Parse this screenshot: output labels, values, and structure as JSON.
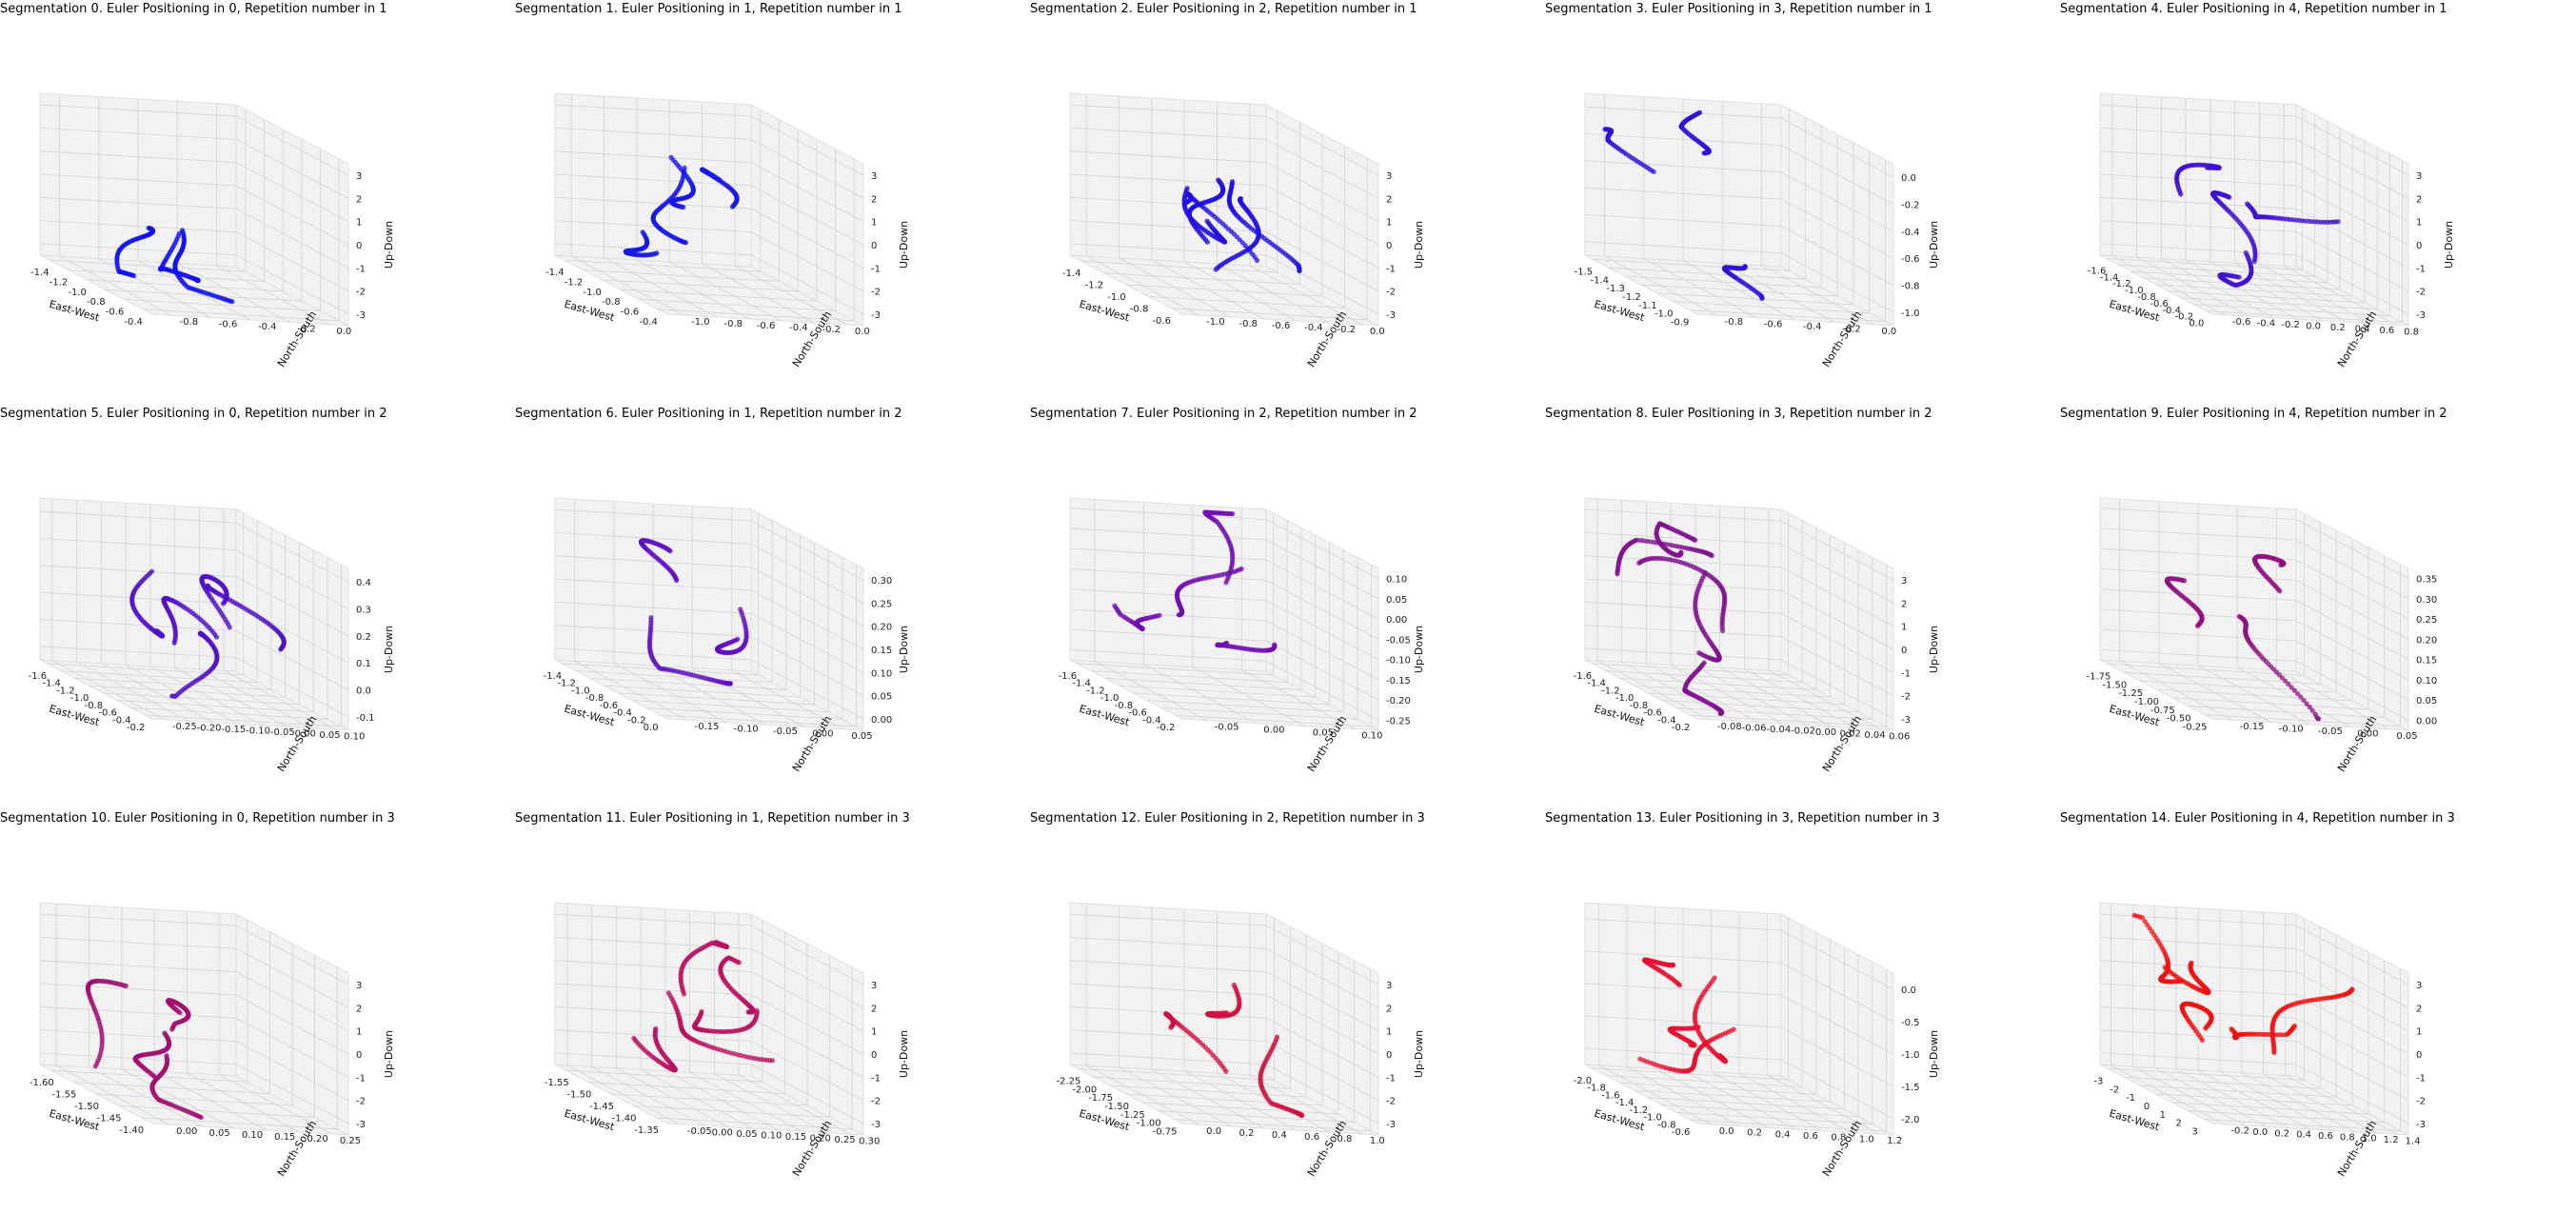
{
  "chart_data": [
    {
      "type": "scatter3d",
      "title": "Segmentation 0. Euler Positioning in 0, Repetition number in 1",
      "xlabel": "East-West",
      "ylabel": "North-South",
      "zlabel": "Up-Down",
      "color": "#1010f0",
      "xticks": [
        "-1.4",
        "-1.2",
        "-1.0",
        "-0.8",
        "-0.6",
        "-0.4"
      ],
      "yticks": [
        "0.0",
        "-0.2",
        "-0.4",
        "-0.6",
        "-0.8"
      ],
      "zticks": [
        "3",
        "2",
        "1",
        "0",
        "-1",
        "-2",
        "-3"
      ],
      "xlim": [
        -1.5,
        -0.3
      ],
      "ylim": [
        -0.9,
        0.1
      ],
      "zlim": [
        -3,
        3
      ]
    },
    {
      "type": "scatter3d",
      "title": "Segmentation 1. Euler Positioning in 1, Repetition number in 1",
      "xlabel": "East-West",
      "ylabel": "North-South",
      "zlabel": "Up-Down",
      "color": "#1818e8",
      "xticks": [
        "-1.4",
        "-1.2",
        "-1.0",
        "-0.8",
        "-0.6",
        "-0.4"
      ],
      "yticks": [
        "0.0",
        "-0.2",
        "-0.4",
        "-0.6",
        "-0.8",
        "-1.0"
      ],
      "zticks": [
        "3",
        "2",
        "1",
        "0",
        "-1",
        "-2",
        "-3"
      ],
      "xlim": [
        -1.5,
        -0.3
      ],
      "ylim": [
        -1.1,
        0.1
      ],
      "zlim": [
        -3,
        3
      ]
    },
    {
      "type": "scatter3d",
      "title": "Segmentation 2. Euler Positioning in 2, Repetition number in 1",
      "xlabel": "East-West",
      "ylabel": "North-South",
      "zlabel": "Up-Down",
      "color": "#2010e0",
      "xticks": [
        "-1.4",
        "-1.2",
        "-1.0",
        "-0.8",
        "-0.6"
      ],
      "yticks": [
        "0.0",
        "-0.2",
        "-0.4",
        "-0.6",
        "-0.8",
        "-1.0"
      ],
      "zticks": [
        "3",
        "2",
        "1",
        "0",
        "-1",
        "-2",
        "-3"
      ],
      "xlim": [
        -1.5,
        -0.5
      ],
      "ylim": [
        -1.1,
        0.1
      ],
      "zlim": [
        -3,
        3
      ]
    },
    {
      "type": "scatter3d",
      "title": "Segmentation 3. Euler Positioning in 3, Repetition number in 1",
      "xlabel": "East-West",
      "ylabel": "North-South",
      "zlabel": "Up-Down",
      "color": "#3010d8",
      "xticks": [
        "-1.5",
        "-1.4",
        "-1.3",
        "-1.2",
        "-1.1",
        "-1.0",
        "-0.9"
      ],
      "yticks": [
        "0.0",
        "-0.2",
        "-0.4",
        "-0.6",
        "-0.8"
      ],
      "zticks": [
        "0.0",
        "-0.2",
        "-0.4",
        "-0.6",
        "-0.8",
        "-1.0"
      ],
      "xlim": [
        -1.6,
        -0.85
      ],
      "ylim": [
        -0.9,
        0.1
      ],
      "zlim": [
        -1.1,
        0.05
      ]
    },
    {
      "type": "scatter3d",
      "title": "Segmentation 4. Euler Positioning in 4, Repetition number in 1",
      "xlabel": "East-West",
      "ylabel": "North-South",
      "zlabel": "Up-Down",
      "color": "#4010d0",
      "xticks": [
        "-1.6",
        "-1.4",
        "-1.2",
        "-1.0",
        "-0.8",
        "-0.6",
        "-0.4",
        "-0.2",
        "0.0"
      ],
      "yticks": [
        "0.8",
        "0.6",
        "0.4",
        "0.2",
        "0.0",
        "-0.2",
        "-0.4",
        "-0.6"
      ],
      "zticks": [
        "3",
        "2",
        "1",
        "0",
        "-1",
        "-2",
        "-3"
      ],
      "xlim": [
        -1.7,
        0.1
      ],
      "ylim": [
        -0.7,
        0.9
      ],
      "zlim": [
        -3,
        3
      ]
    },
    {
      "type": "scatter3d",
      "title": "Segmentation 5. Euler Positioning in 0, Repetition number in 2",
      "xlabel": "East-West",
      "ylabel": "North-South",
      "zlabel": "Up-Down",
      "color": "#5010c8",
      "xticks": [
        "-1.6",
        "-1.4",
        "-1.2",
        "-1.0",
        "-0.8",
        "-0.6",
        "-0.4",
        "-0.2"
      ],
      "yticks": [
        "0.10",
        "0.05",
        "0.00",
        "-0.05",
        "-0.10",
        "-0.15",
        "-0.20",
        "-0.25"
      ],
      "zticks": [
        "0.4",
        "0.3",
        "0.2",
        "0.1",
        "0.0",
        "-0.1"
      ],
      "xlim": [
        -1.7,
        -0.1
      ],
      "ylim": [
        -0.27,
        0.11
      ],
      "zlim": [
        -0.15,
        0.45
      ]
    },
    {
      "type": "scatter3d",
      "title": "Segmentation 6. Euler Positioning in 1, Repetition number in 2",
      "xlabel": "East-West",
      "ylabel": "North-South",
      "zlabel": "Up-Down",
      "color": "#6010c0",
      "xticks": [
        "-1.4",
        "-1.2",
        "-1.0",
        "-0.8",
        "-0.6",
        "-0.4",
        "-0.2",
        "0.0"
      ],
      "yticks": [
        "0.05",
        "0.00",
        "-0.05",
        "-0.10",
        "-0.15"
      ],
      "zticks": [
        "0.30",
        "0.25",
        "0.20",
        "0.15",
        "0.10",
        "0.05",
        "0.00"
      ],
      "xlim": [
        -1.5,
        0.05
      ],
      "ylim": [
        -0.17,
        0.07
      ],
      "zlim": [
        -0.02,
        0.32
      ]
    },
    {
      "type": "scatter3d",
      "title": "Segmentation 7. Euler Positioning in 2, Repetition number in 2",
      "xlabel": "East-West",
      "ylabel": "North-South",
      "zlabel": "Up-Down",
      "color": "#7010b0",
      "xticks": [
        "-1.6",
        "-1.4",
        "-1.2",
        "-1.0",
        "-0.8",
        "-0.6",
        "-0.4",
        "-0.2"
      ],
      "yticks": [
        "0.10",
        "0.05",
        "0.00",
        "-0.05"
      ],
      "zticks": [
        "0.10",
        "0.05",
        "0.00",
        "-0.05",
        "-0.10",
        "-0.15",
        "-0.20",
        "-0.25"
      ],
      "xlim": [
        -1.7,
        -0.15
      ],
      "ylim": [
        -0.07,
        0.12
      ],
      "zlim": [
        -0.27,
        0.12
      ]
    },
    {
      "type": "scatter3d",
      "title": "Segmentation 8. Euler Positioning in 3, Repetition number in 2",
      "xlabel": "East-West",
      "ylabel": "North-South",
      "zlabel": "Up-Down",
      "color": "#801090",
      "xticks": [
        "-1.6",
        "-1.4",
        "-1.2",
        "-1.0",
        "-0.8",
        "-0.6",
        "-0.4",
        "-0.2"
      ],
      "yticks": [
        "0.06",
        "0.04",
        "0.02",
        "0.00",
        "-0.02",
        "-0.04",
        "-0.06",
        "-0.08"
      ],
      "zticks": [
        "3",
        "2",
        "1",
        "0",
        "-1",
        "-2",
        "-3"
      ],
      "xlim": [
        -1.7,
        -0.15
      ],
      "ylim": [
        -0.09,
        0.07
      ],
      "zlim": [
        -3,
        3
      ]
    },
    {
      "type": "scatter3d",
      "title": "Segmentation 9. Euler Positioning in 4, Repetition number in 2",
      "xlabel": "East-West",
      "ylabel": "North-South",
      "zlabel": "",
      "color": "#901080",
      "xticks": [
        "-1.75",
        "-1.50",
        "-1.25",
        "-1.00",
        "-0.75",
        "-0.50",
        "-0.25"
      ],
      "yticks": [
        "0.05",
        "0.00",
        "-0.05",
        "-0.10",
        "-0.15"
      ],
      "zticks": [
        "0.35",
        "0.30",
        "0.25",
        "0.20",
        "0.15",
        "0.10",
        "0.05",
        "0.00"
      ],
      "xlim": [
        -1.85,
        -0.15
      ],
      "ylim": [
        -0.17,
        0.07
      ],
      "zlim": [
        -0.02,
        0.37
      ]
    },
    {
      "type": "scatter3d",
      "title": "Segmentation 10. Euler Positioning in 0, Repetition number in 3",
      "xlabel": "East-West",
      "ylabel": "North-South",
      "zlabel": "Up-Down",
      "color": "#a01070",
      "xticks": [
        "-1.60",
        "-1.55",
        "-1.50",
        "-1.45",
        "-1.40"
      ],
      "yticks": [
        "0.25",
        "0.20",
        "0.15",
        "0.10",
        "0.05",
        "0.00"
      ],
      "zticks": [
        "3",
        "2",
        "1",
        "0",
        "-1",
        "-2",
        "-3"
      ],
      "xlim": [
        -1.63,
        -1.38
      ],
      "ylim": [
        -0.02,
        0.27
      ],
      "zlim": [
        -3,
        3
      ]
    },
    {
      "type": "scatter3d",
      "title": "Segmentation 11. Euler Positioning in 1, Repetition number in 3",
      "xlabel": "East-West",
      "ylabel": "North-South",
      "zlabel": "Up-Down",
      "color": "#b81060",
      "xticks": [
        "-1.55",
        "-1.50",
        "-1.45",
        "-1.40",
        "-1.35"
      ],
      "yticks": [
        "0.30",
        "0.25",
        "0.20",
        "0.15",
        "0.10",
        "0.05",
        "0.00",
        "-0.05"
      ],
      "zticks": [
        "3",
        "2",
        "1",
        "0",
        "-1",
        "-2",
        "-3"
      ],
      "xlim": [
        -1.58,
        -1.32
      ],
      "ylim": [
        -0.07,
        0.32
      ],
      "zlim": [
        -3,
        3
      ]
    },
    {
      "type": "scatter3d",
      "title": "Segmentation 12. Euler Positioning in 2, Repetition number in 3",
      "xlabel": "East-West",
      "ylabel": "North-South",
      "zlabel": "Up-Down",
      "color": "#d01040",
      "xticks": [
        "-2.25",
        "-2.00",
        "-1.75",
        "-1.50",
        "-1.25",
        "-1.00",
        "-0.75"
      ],
      "yticks": [
        "1.0",
        "0.8",
        "0.6",
        "0.4",
        "0.2",
        "0.0"
      ],
      "zticks": [
        "3",
        "2",
        "1",
        "0",
        "-1",
        "-2",
        "-3"
      ],
      "xlim": [
        -2.35,
        -0.6
      ],
      "ylim": [
        -0.05,
        1.1
      ],
      "zlim": [
        -3,
        3
      ]
    },
    {
      "type": "scatter3d",
      "title": "Segmentation 13. Euler Positioning in 3, Repetition number in 3",
      "xlabel": "East-West",
      "ylabel": "North-South",
      "zlabel": "Up-Down",
      "color": "#e81030",
      "xticks": [
        "-2.0",
        "-1.8",
        "-1.6",
        "-1.4",
        "-1.2",
        "-1.0",
        "-0.8",
        "-0.6"
      ],
      "yticks": [
        "1.2",
        "1.0",
        "0.8",
        "0.6",
        "0.4",
        "0.2",
        "0.0"
      ],
      "zticks": [
        "0.0",
        "-0.5",
        "-1.0",
        "-1.5",
        "-2.0"
      ],
      "xlim": [
        -2.1,
        -0.5
      ],
      "ylim": [
        -0.05,
        1.3
      ],
      "zlim": [
        -2.4,
        0.3
      ]
    },
    {
      "type": "scatter3d",
      "title": "Segmentation 14. Euler Positioning in 4, Repetition number in 3",
      "xlabel": "East-West",
      "ylabel": "North-South",
      "zlabel": "",
      "color": "#f01010",
      "xticks": [
        "-3",
        "-2",
        "-1",
        "0",
        "1",
        "2",
        "3"
      ],
      "yticks": [
        "1.4",
        "1.2",
        "1.0",
        "0.8",
        "0.6",
        "0.4",
        "0.2",
        "0.0",
        "-0.2"
      ],
      "zticks": [
        "3",
        "2",
        "1",
        "0",
        "-1",
        "-2",
        "-3"
      ],
      "xlim": [
        -3.2,
        3.2
      ],
      "ylim": [
        -0.25,
        1.45
      ],
      "zlim": [
        -3,
        3
      ]
    }
  ]
}
